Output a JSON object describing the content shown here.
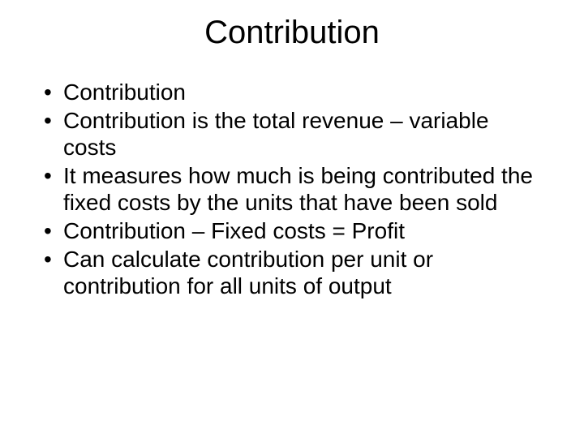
{
  "slide": {
    "title": "Contribution",
    "bullets": [
      "Contribution",
      "Contribution is the total revenue – variable costs",
      "It measures how much is being contributed the fixed costs by the units that have been sold",
      "Contribution – Fixed costs = Profit",
      "Can calculate contribution per unit or contribution for all units of output"
    ]
  }
}
